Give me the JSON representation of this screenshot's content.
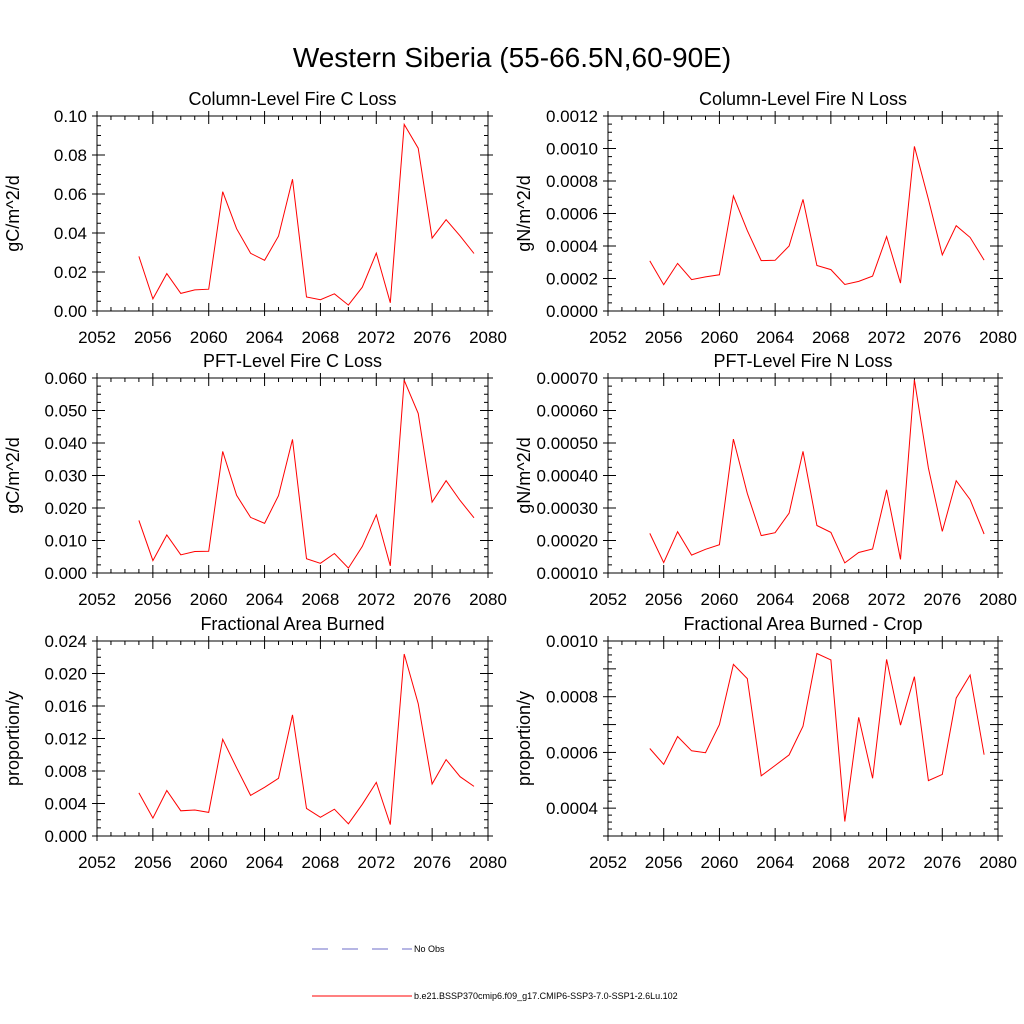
{
  "title": "Western Siberia (55-66.5N,60-90E)",
  "colors": {
    "series": "#ff0000",
    "obs": "#6c6cc8",
    "axis": "#000000"
  },
  "legend": {
    "entries": [
      {
        "label": "No Obs",
        "style": "dashed",
        "color": "#6c6cc8"
      },
      {
        "label": "b.e21.BSSP370cmip6.f09_g17.CMIP6-SSP3-7.0-SSP1-2.6Lu.102",
        "style": "solid",
        "color": "#ff0000"
      }
    ]
  },
  "chart_data": [
    {
      "type": "line",
      "title": "Column-Level Fire C Loss",
      "ylabel": "gC/m^2/d",
      "xlim": [
        2052,
        2080
      ],
      "ylim": [
        0,
        0.1
      ],
      "xticks": [
        "2052",
        "2056",
        "2060",
        "2064",
        "2068",
        "2072",
        "2076",
        "2080"
      ],
      "yticks": [
        "0.00",
        "0.02",
        "0.04",
        "0.06",
        "0.08",
        "0.10"
      ],
      "x": [
        2055,
        2056,
        2057,
        2058,
        2059,
        2060,
        2061,
        2062,
        2063,
        2064,
        2065,
        2066,
        2067,
        2068,
        2069,
        2070,
        2071,
        2072,
        2073,
        2074,
        2075,
        2076,
        2077,
        2078,
        2079
      ],
      "series": [
        {
          "name": "b.e21.BSSP370cmip6.f09_g17.CMIP6-SSP3-7.0-SSP1-2.6Lu.102",
          "values": [
            0.028,
            0.0062,
            0.0192,
            0.009,
            0.0108,
            0.0112,
            0.0612,
            0.0422,
            0.0296,
            0.026,
            0.0384,
            0.0676,
            0.0072,
            0.0058,
            0.0088,
            0.003,
            0.0122,
            0.0297,
            0.0042,
            0.0957,
            0.0835,
            0.0374,
            0.0468,
            0.0385,
            0.0295
          ]
        }
      ]
    },
    {
      "type": "line",
      "title": "Column-Level Fire N Loss",
      "ylabel": "gN/m^2/d",
      "xlim": [
        2052,
        2080
      ],
      "ylim": [
        0,
        0.0012
      ],
      "xticks": [
        "2052",
        "2056",
        "2060",
        "2064",
        "2068",
        "2072",
        "2076",
        "2080"
      ],
      "yticks": [
        "0.0000",
        "0.0002",
        "0.0004",
        "0.0006",
        "0.0008",
        "0.0010",
        "0.0012"
      ],
      "x": [
        2055,
        2056,
        2057,
        2058,
        2059,
        2060,
        2061,
        2062,
        2063,
        2064,
        2065,
        2066,
        2067,
        2068,
        2069,
        2070,
        2071,
        2072,
        2073,
        2074,
        2075,
        2076,
        2077,
        2078,
        2079
      ],
      "series": [
        {
          "name": "b.e21.BSSP370cmip6.f09_g17.CMIP6-SSP3-7.0-SSP1-2.6Lu.102",
          "values": [
            0.000308,
            0.000162,
            0.000293,
            0.000193,
            0.00021,
            0.000223,
            0.000708,
            0.000495,
            0.00031,
            0.000312,
            0.0004,
            0.000687,
            0.00028,
            0.000255,
            0.000163,
            0.000182,
            0.000215,
            0.000458,
            0.000172,
            0.001013,
            0.000688,
            0.000345,
            0.000525,
            0.000453,
            0.000313
          ]
        }
      ]
    },
    {
      "type": "line",
      "title": "PFT-Level Fire C Loss",
      "ylabel": "gC/m^2/d",
      "xlim": [
        2052,
        2080
      ],
      "ylim": [
        0,
        0.06
      ],
      "xticks": [
        "2052",
        "2056",
        "2060",
        "2064",
        "2068",
        "2072",
        "2076",
        "2080"
      ],
      "yticks": [
        "0.000",
        "0.010",
        "0.020",
        "0.030",
        "0.040",
        "0.050",
        "0.060"
      ],
      "x": [
        2055,
        2056,
        2057,
        2058,
        2059,
        2060,
        2061,
        2062,
        2063,
        2064,
        2065,
        2066,
        2067,
        2068,
        2069,
        2070,
        2071,
        2072,
        2073,
        2074,
        2075,
        2076,
        2077,
        2078,
        2079
      ],
      "series": [
        {
          "name": "b.e21.BSSP370cmip6.f09_g17.CMIP6-SSP3-7.0-SSP1-2.6Lu.102",
          "values": [
            0.0162,
            0.0038,
            0.0117,
            0.0056,
            0.0066,
            0.0067,
            0.0374,
            0.0239,
            0.0171,
            0.0153,
            0.0238,
            0.0411,
            0.0044,
            0.003,
            0.006,
            0.0015,
            0.0082,
            0.0179,
            0.0022,
            0.0593,
            0.0491,
            0.0218,
            0.0284,
            0.0223,
            0.017
          ]
        }
      ]
    },
    {
      "type": "line",
      "title": "PFT-Level Fire N Loss",
      "ylabel": "gN/m^2/d",
      "xlim": [
        2052,
        2080
      ],
      "ylim": [
        0.0001,
        0.0007
      ],
      "xticks": [
        "2052",
        "2056",
        "2060",
        "2064",
        "2068",
        "2072",
        "2076",
        "2080"
      ],
      "yticks": [
        "0.00010",
        "0.00020",
        "0.00030",
        "0.00040",
        "0.00050",
        "0.00060",
        "0.00070"
      ],
      "x": [
        2055,
        2056,
        2057,
        2058,
        2059,
        2060,
        2061,
        2062,
        2063,
        2064,
        2065,
        2066,
        2067,
        2068,
        2069,
        2070,
        2071,
        2072,
        2073,
        2074,
        2075,
        2076,
        2077,
        2078,
        2079
      ],
      "series": [
        {
          "name": "b.e21.BSSP370cmip6.f09_g17.CMIP6-SSP3-7.0-SSP1-2.6Lu.102",
          "values": [
            0.000222,
            0.000132,
            0.000227,
            0.000155,
            0.000173,
            0.000187,
            0.000512,
            0.000345,
            0.000215,
            0.000224,
            0.000284,
            0.000474,
            0.000246,
            0.000225,
            0.000131,
            0.000163,
            0.000174,
            0.000356,
            0.000142,
            0.000694,
            0.000423,
            0.000228,
            0.000384,
            0.000326,
            0.00022
          ]
        }
      ]
    },
    {
      "type": "line",
      "title": "Fractional Area Burned",
      "ylabel": "proportion/y",
      "xlim": [
        2052,
        2080
      ],
      "ylim": [
        0,
        0.024
      ],
      "xticks": [
        "2052",
        "2056",
        "2060",
        "2064",
        "2068",
        "2072",
        "2076",
        "2080"
      ],
      "yticks": [
        "0.000",
        "0.004",
        "0.008",
        "0.012",
        "0.016",
        "0.020",
        "0.024"
      ],
      "x": [
        2055,
        2056,
        2057,
        2058,
        2059,
        2060,
        2061,
        2062,
        2063,
        2064,
        2065,
        2066,
        2067,
        2068,
        2069,
        2070,
        2071,
        2072,
        2073,
        2074,
        2075,
        2076,
        2077,
        2078,
        2079
      ],
      "series": [
        {
          "name": "b.e21.BSSP370cmip6.f09_g17.CMIP6-SSP3-7.0-SSP1-2.6Lu.102",
          "values": [
            0.0053,
            0.0022,
            0.0056,
            0.0031,
            0.0032,
            0.0029,
            0.0119,
            0.0084,
            0.005,
            0.006,
            0.0071,
            0.0149,
            0.0034,
            0.0023,
            0.0033,
            0.0015,
            0.0039,
            0.0066,
            0.0014,
            0.0224,
            0.0163,
            0.0064,
            0.0094,
            0.0073,
            0.0061
          ]
        }
      ]
    },
    {
      "type": "line",
      "title": "Fractional Area Burned - Crop",
      "ylabel": "proportion/y",
      "xlim": [
        2052,
        2080
      ],
      "ylim": [
        0.0003,
        0.001
      ],
      "xticks": [
        "2052",
        "2056",
        "2060",
        "2064",
        "2068",
        "2072",
        "2076",
        "2080"
      ],
      "yticks": [
        "",
        "0.0004",
        "",
        "0.0006",
        "",
        "0.0008",
        "",
        "0.0010"
      ],
      "ytick_values": [
        0.0003,
        0.0004,
        0.0005,
        0.0006,
        0.0007,
        0.0008,
        0.0009,
        0.001
      ],
      "x": [
        2055,
        2056,
        2057,
        2058,
        2059,
        2060,
        2061,
        2062,
        2063,
        2064,
        2065,
        2066,
        2067,
        2068,
        2069,
        2070,
        2071,
        2072,
        2073,
        2074,
        2075,
        2076,
        2077,
        2078,
        2079
      ],
      "series": [
        {
          "name": "b.e21.BSSP370cmip6.f09_g17.CMIP6-SSP3-7.0-SSP1-2.6Lu.102",
          "values": [
            0.000614,
            0.000557,
            0.000657,
            0.000606,
            0.000599,
            0.0007,
            0.000916,
            0.000865,
            0.000516,
            0.000553,
            0.000591,
            0.000694,
            0.000955,
            0.000932,
            0.000352,
            0.000726,
            0.000507,
            0.000934,
            0.000698,
            0.000872,
            0.000499,
            0.000521,
            0.000795,
            0.000878,
            0.000592
          ]
        }
      ]
    }
  ]
}
